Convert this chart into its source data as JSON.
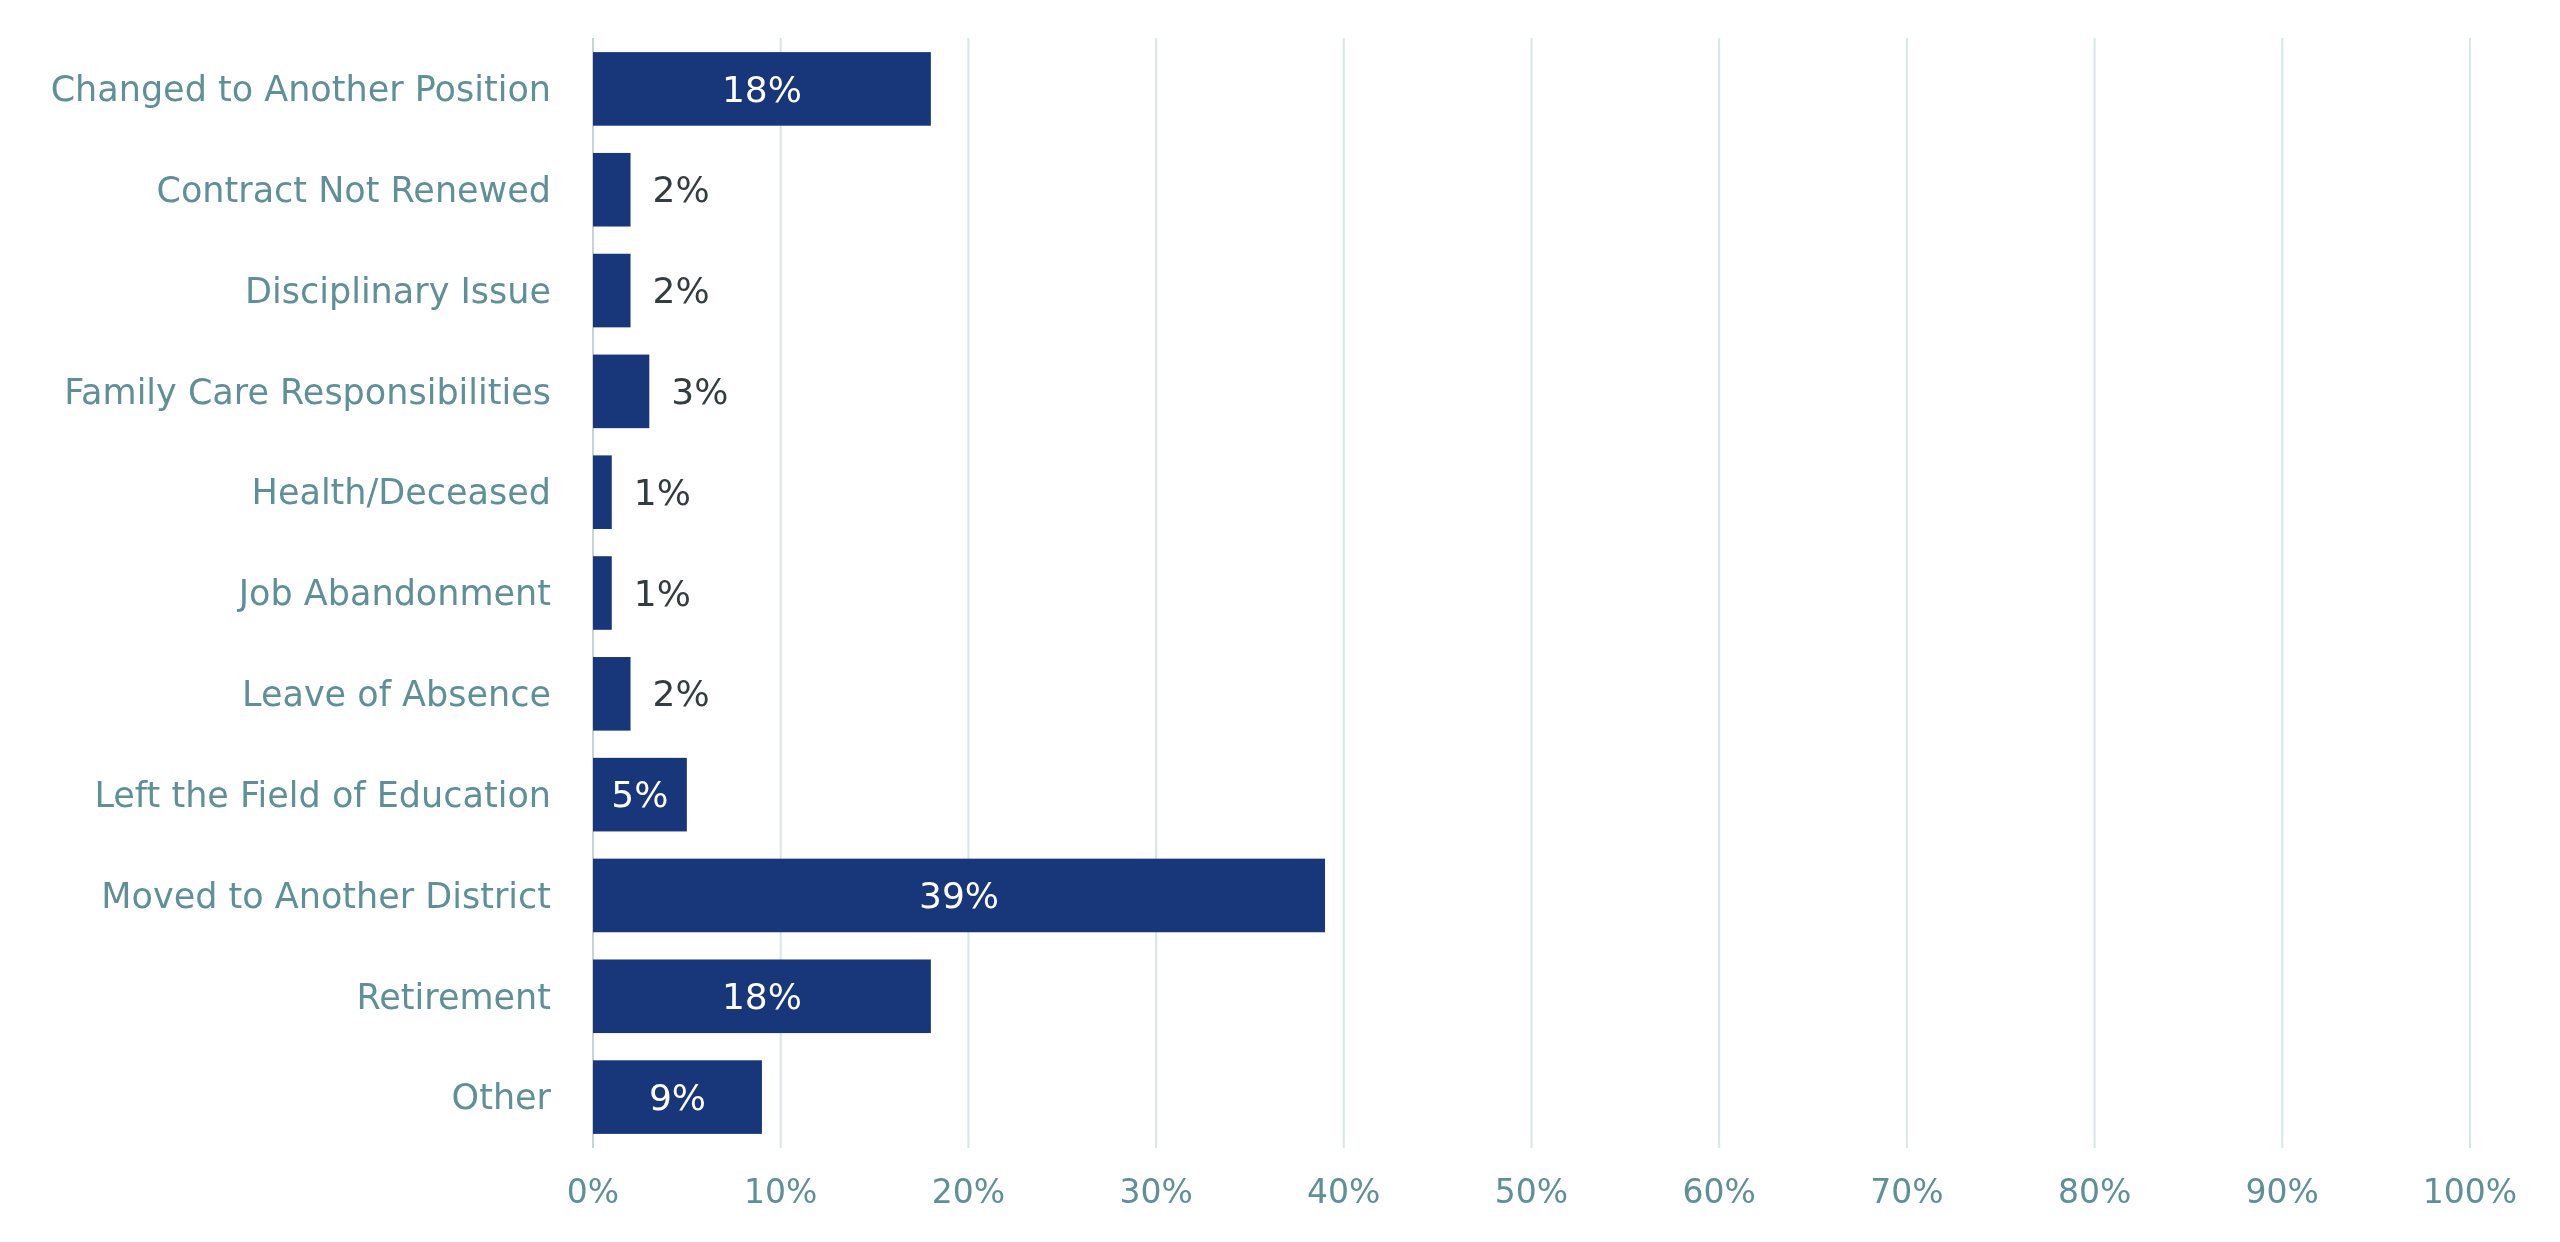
{
  "chart_data": {
    "type": "bar",
    "orientation": "horizontal",
    "categories": [
      "Changed to Another Position",
      "Contract Not Renewed",
      "Disciplinary Issue",
      "Family Care Responsibilities",
      "Health/Deceased",
      "Job Abandonment",
      "Leave of Absence",
      "Left the Field of Education",
      "Moved to Another District",
      "Retirement",
      "Other"
    ],
    "values": [
      18,
      2,
      2,
      3,
      1,
      1,
      2,
      5,
      39,
      18,
      9
    ],
    "value_labels": [
      "18%",
      "2%",
      "2%",
      "3%",
      "1%",
      "1%",
      "2%",
      "5%",
      "39%",
      "18%",
      "9%"
    ],
    "color": "#17377a",
    "xlim": [
      0,
      100
    ],
    "xticks": [
      {
        "value": 0,
        "label": "0%"
      },
      {
        "value": 10,
        "label": "10%"
      },
      {
        "value": 20,
        "label": "20%"
      },
      {
        "value": 30,
        "label": "30%"
      },
      {
        "value": 40,
        "label": "40%"
      },
      {
        "value": 50,
        "label": "50%"
      },
      {
        "value": 60,
        "label": "60%"
      },
      {
        "value": 70,
        "label": "70%"
      },
      {
        "value": 80,
        "label": "80%"
      },
      {
        "value": 90,
        "label": "90%"
      },
      {
        "value": 100,
        "label": "100%"
      }
    ],
    "grid": "x"
  }
}
